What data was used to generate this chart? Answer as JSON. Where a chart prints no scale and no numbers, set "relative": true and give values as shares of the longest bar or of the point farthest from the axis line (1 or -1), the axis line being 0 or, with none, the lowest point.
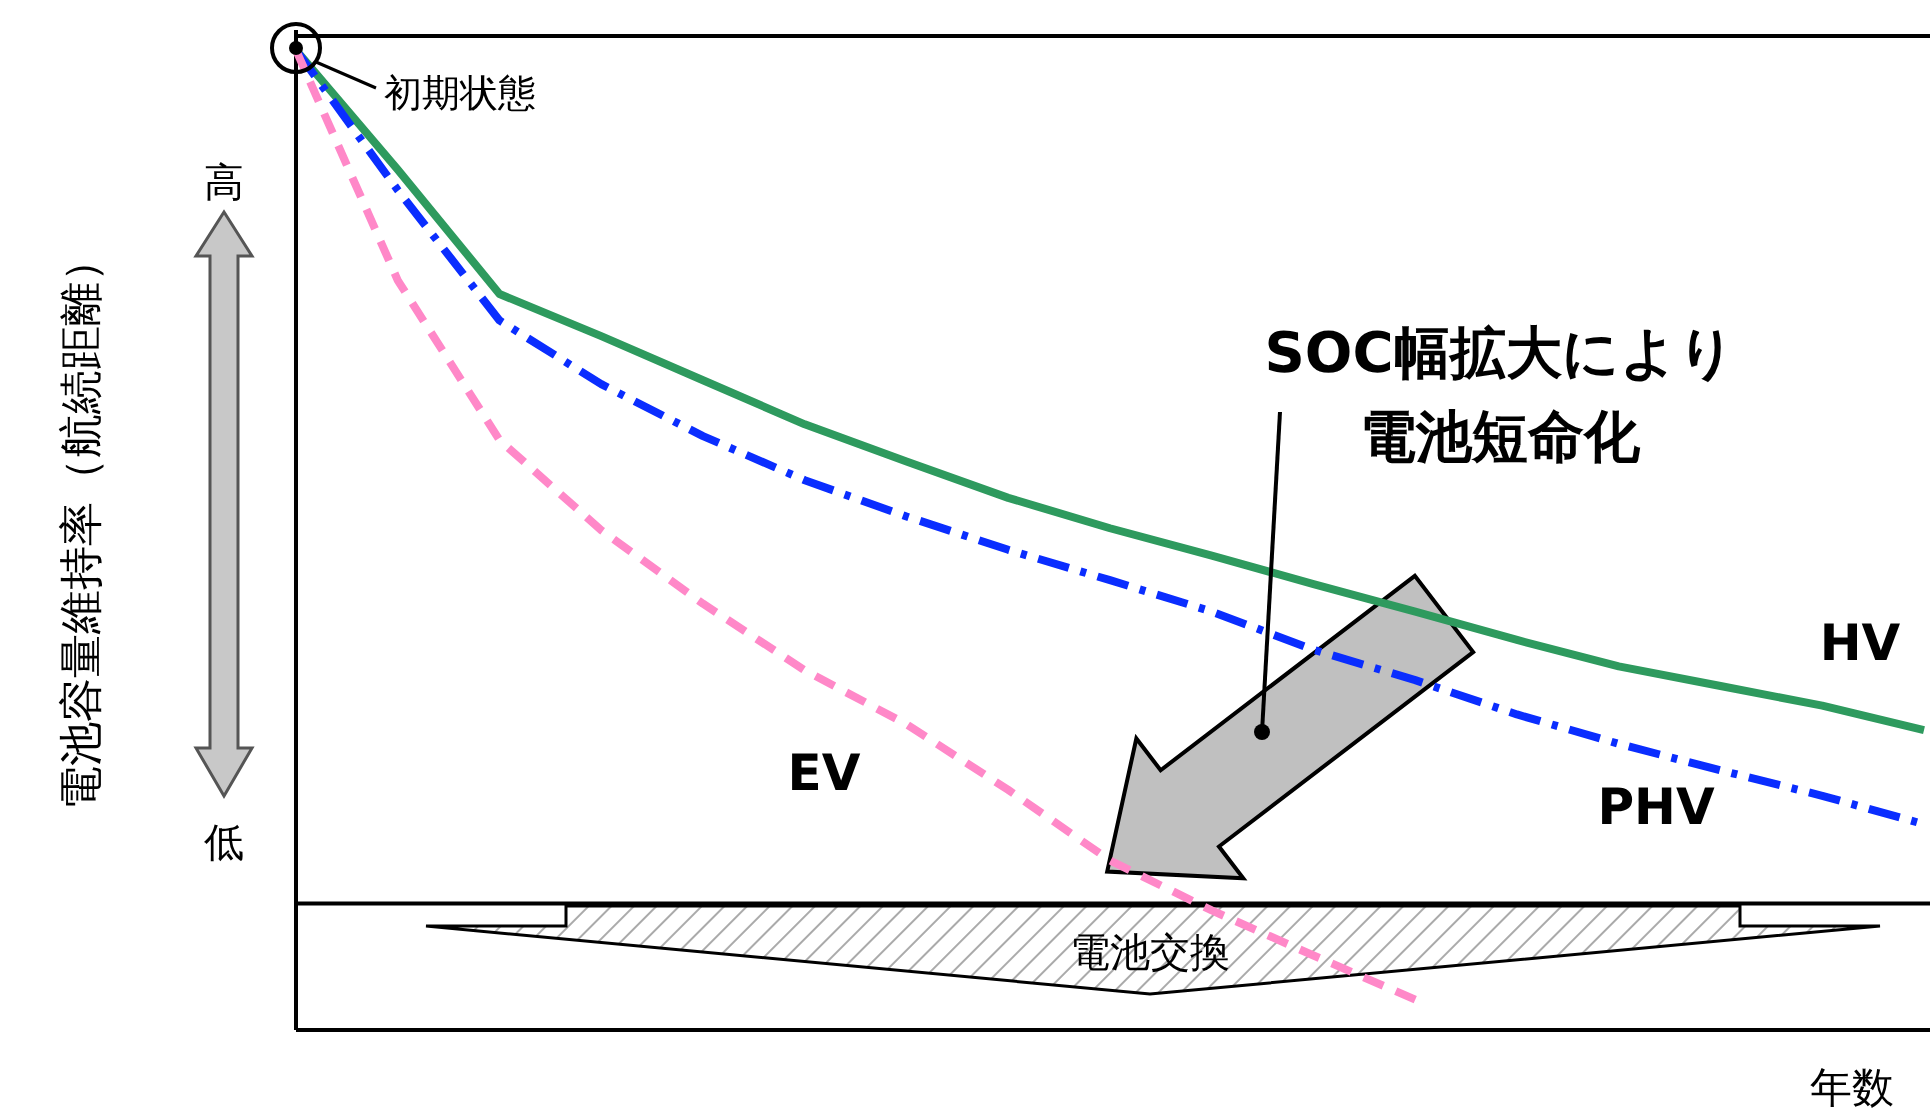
{
  "chart_data": {
    "type": "line",
    "relative": true,
    "ylabel": "電池容量維持率（航続距離）",
    "xlabel": "年数",
    "categories": [
      null,
      null,
      null,
      null,
      null,
      null,
      null,
      null,
      null,
      null,
      null,
      null,
      null,
      null,
      null,
      null,
      null
    ],
    "series": [
      {
        "name": "HV",
        "color": "#2e9a5e",
        "line_style": "solid",
        "values": [
          1.0,
          0.878,
          0.751,
          0.708,
          0.663,
          0.618,
          0.58,
          0.543,
          0.512,
          0.484,
          0.455,
          0.427,
          0.398,
          0.371,
          0.351,
          0.331,
          0.306
        ]
      },
      {
        "name": "PHV",
        "color": "#0a2dff",
        "line_style": "dashdot",
        "values": [
          1.0,
          0.857,
          0.724,
          0.659,
          0.606,
          0.561,
          0.524,
          0.49,
          0.459,
          0.427,
          0.388,
          0.357,
          0.322,
          0.292,
          0.265,
          0.239,
          0.21
        ]
      },
      {
        "name": "EV",
        "color": "#ff88c8",
        "line_style": "dashed",
        "values": [
          1.0,
          0.765,
          0.602,
          0.51,
          0.435,
          0.367,
          0.312,
          0.245,
          0.173,
          0.122,
          0.076,
          0.031,
          null,
          null,
          null,
          null,
          null
        ]
      }
    ],
    "ref_lines": [
      {
        "axis": "y",
        "value": 0.129,
        "color": "#000000",
        "label": "電池交換"
      }
    ],
    "annotations": [
      "初期状態",
      "高",
      "低",
      "SOC幅拡大により電池短命化"
    ],
    "legend": false,
    "grid": false
  }
}
